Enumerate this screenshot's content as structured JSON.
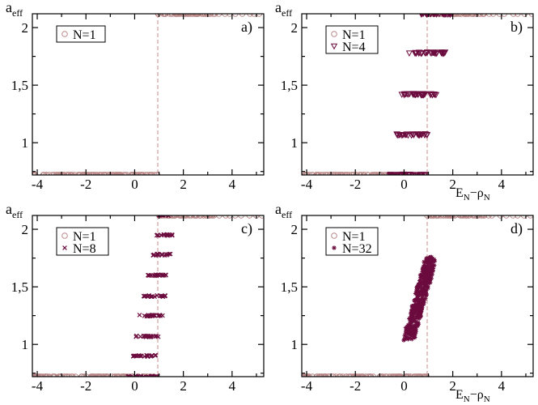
{
  "colors": {
    "n1": "#b98787",
    "nmulti": "#6b0b3e",
    "vline": "#c98e8e"
  },
  "chart_data": [
    {
      "type": "scatter",
      "panel_label": "a)",
      "ylabel_main": "a",
      "ylabel_sub": "eff",
      "xlabel": "",
      "xlim": [
        -4.2,
        5.3
      ],
      "ylim": [
        0.72,
        2.12
      ],
      "x_ticks": [
        -4,
        -2,
        0,
        2,
        4
      ],
      "y_ticks": [
        1,
        1.5,
        2
      ],
      "y_tick_labels": [
        "1",
        "1,5",
        "2"
      ],
      "vline_x": 0.95,
      "legend": [
        "N=1"
      ],
      "series": [
        {
          "name": "N=1",
          "marker": "circle",
          "color": "#b98787",
          "clusters": [
            {
              "x_range": [
                -4.2,
                0.95
              ],
              "y": 0.72
            },
            {
              "x_range": [
                0.95,
                3.3
              ],
              "y": 2.12
            },
            {
              "x_range": [
                3.3,
                5.3
              ],
              "y": 2.12,
              "sparse": true
            }
          ]
        }
      ]
    },
    {
      "type": "scatter",
      "panel_label": "b)",
      "ylabel_main": "a",
      "ylabel_sub": "eff",
      "xlabel_main": "E",
      "xlabel_sub1": "N",
      "xlabel_mid": "−ρ",
      "xlabel_sub2": "N",
      "xlim": [
        -4.2,
        5.3
      ],
      "ylim": [
        0.72,
        2.12
      ],
      "x_ticks": [
        -4,
        -2,
        0,
        2,
        4
      ],
      "y_ticks": [
        1,
        1.5,
        2
      ],
      "y_tick_labels": [
        "1",
        "1,5",
        "2"
      ],
      "vline_x": 0.95,
      "legend": [
        "N=1",
        "N=4"
      ],
      "series": [
        {
          "name": "N=1",
          "marker": "circle",
          "color": "#b98787",
          "clusters": [
            {
              "x_range": [
                -4.2,
                0.95
              ],
              "y": 0.72
            },
            {
              "x_range": [
                0.95,
                3.3
              ],
              "y": 2.12
            },
            {
              "x_range": [
                3.3,
                5.3
              ],
              "y": 2.12,
              "sparse": true
            }
          ]
        },
        {
          "name": "N=4",
          "marker": "triangle",
          "color": "#6b0b3e",
          "clusters": [
            {
              "x_range": [
                -0.6,
                1.0
              ],
              "y": 0.72
            },
            {
              "x_range": [
                -0.5,
                1.0
              ],
              "y": 1.07
            },
            {
              "x_range": [
                -0.1,
                1.4
              ],
              "y": 1.42
            },
            {
              "x_range": [
                0.2,
                1.7
              ],
              "y": 1.78
            },
            {
              "x_range": [
                0.6,
                2.0
              ],
              "y": 2.12
            }
          ]
        }
      ]
    },
    {
      "type": "scatter",
      "panel_label": "c)",
      "ylabel_main": "a",
      "ylabel_sub": "eff",
      "xlabel": "",
      "xlim": [
        -4.2,
        5.3
      ],
      "ylim": [
        0.72,
        2.12
      ],
      "x_ticks": [
        -4,
        -2,
        0,
        2,
        4
      ],
      "y_ticks": [
        1,
        1.5,
        2
      ],
      "y_tick_labels": [
        "1",
        "1,5",
        "2"
      ],
      "vline_x": 0.95,
      "legend": [
        "N=1",
        "N=8"
      ],
      "series": [
        {
          "name": "N=1",
          "marker": "circle",
          "color": "#b98787",
          "clusters": [
            {
              "x_range": [
                -4.2,
                0.95
              ],
              "y": 0.72
            },
            {
              "x_range": [
                0.95,
                3.3
              ],
              "y": 2.12
            },
            {
              "x_range": [
                3.3,
                5.3
              ],
              "y": 2.12,
              "sparse": true
            }
          ]
        },
        {
          "name": "N=8",
          "marker": "cross",
          "color": "#6b0b3e",
          "clusters": [
            {
              "x_range": [
                -0.3,
                1.0
              ],
              "y": 0.72
            },
            {
              "x_range": [
                -0.1,
                0.9
              ],
              "y": 0.9
            },
            {
              "x_range": [
                0.0,
                1.0
              ],
              "y": 1.07
            },
            {
              "x_range": [
                0.2,
                1.2
              ],
              "y": 1.25
            },
            {
              "x_range": [
                0.3,
                1.3
              ],
              "y": 1.42
            },
            {
              "x_range": [
                0.5,
                1.4
              ],
              "y": 1.6
            },
            {
              "x_range": [
                0.7,
                1.5
              ],
              "y": 1.78
            },
            {
              "x_range": [
                0.9,
                1.6
              ],
              "y": 1.95
            },
            {
              "x_range": [
                1.0,
                1.4
              ],
              "y": 2.12
            }
          ]
        }
      ]
    },
    {
      "type": "scatter",
      "panel_label": "d)",
      "ylabel_main": "a",
      "ylabel_sub": "eff",
      "xlabel_main": "E",
      "xlabel_sub1": "N",
      "xlabel_mid": "−ρ",
      "xlabel_sub2": "N",
      "xlim": [
        -4.2,
        5.3
      ],
      "ylim": [
        0.72,
        2.12
      ],
      "x_ticks": [
        -4,
        -2,
        0,
        2,
        4
      ],
      "y_ticks": [
        1,
        1.5,
        2
      ],
      "y_tick_labels": [
        "1",
        "1,5",
        "2"
      ],
      "vline_x": 0.95,
      "legend": [
        "N=1",
        "N=32"
      ],
      "series": [
        {
          "name": "N=1",
          "marker": "circle",
          "color": "#b98787",
          "clusters": [
            {
              "x_range": [
                -4.2,
                0.95
              ],
              "y": 0.72
            },
            {
              "x_range": [
                0.95,
                3.3
              ],
              "y": 2.12
            },
            {
              "x_range": [
                3.3,
                5.3
              ],
              "y": 2.12,
              "sparse": true
            }
          ]
        },
        {
          "name": "N=32",
          "marker": "star",
          "color": "#6b0b3e",
          "band": {
            "from": [
              0.2,
              1.05
            ],
            "to": [
              1.1,
              1.75
            ],
            "width": 0.45
          }
        }
      ]
    }
  ]
}
